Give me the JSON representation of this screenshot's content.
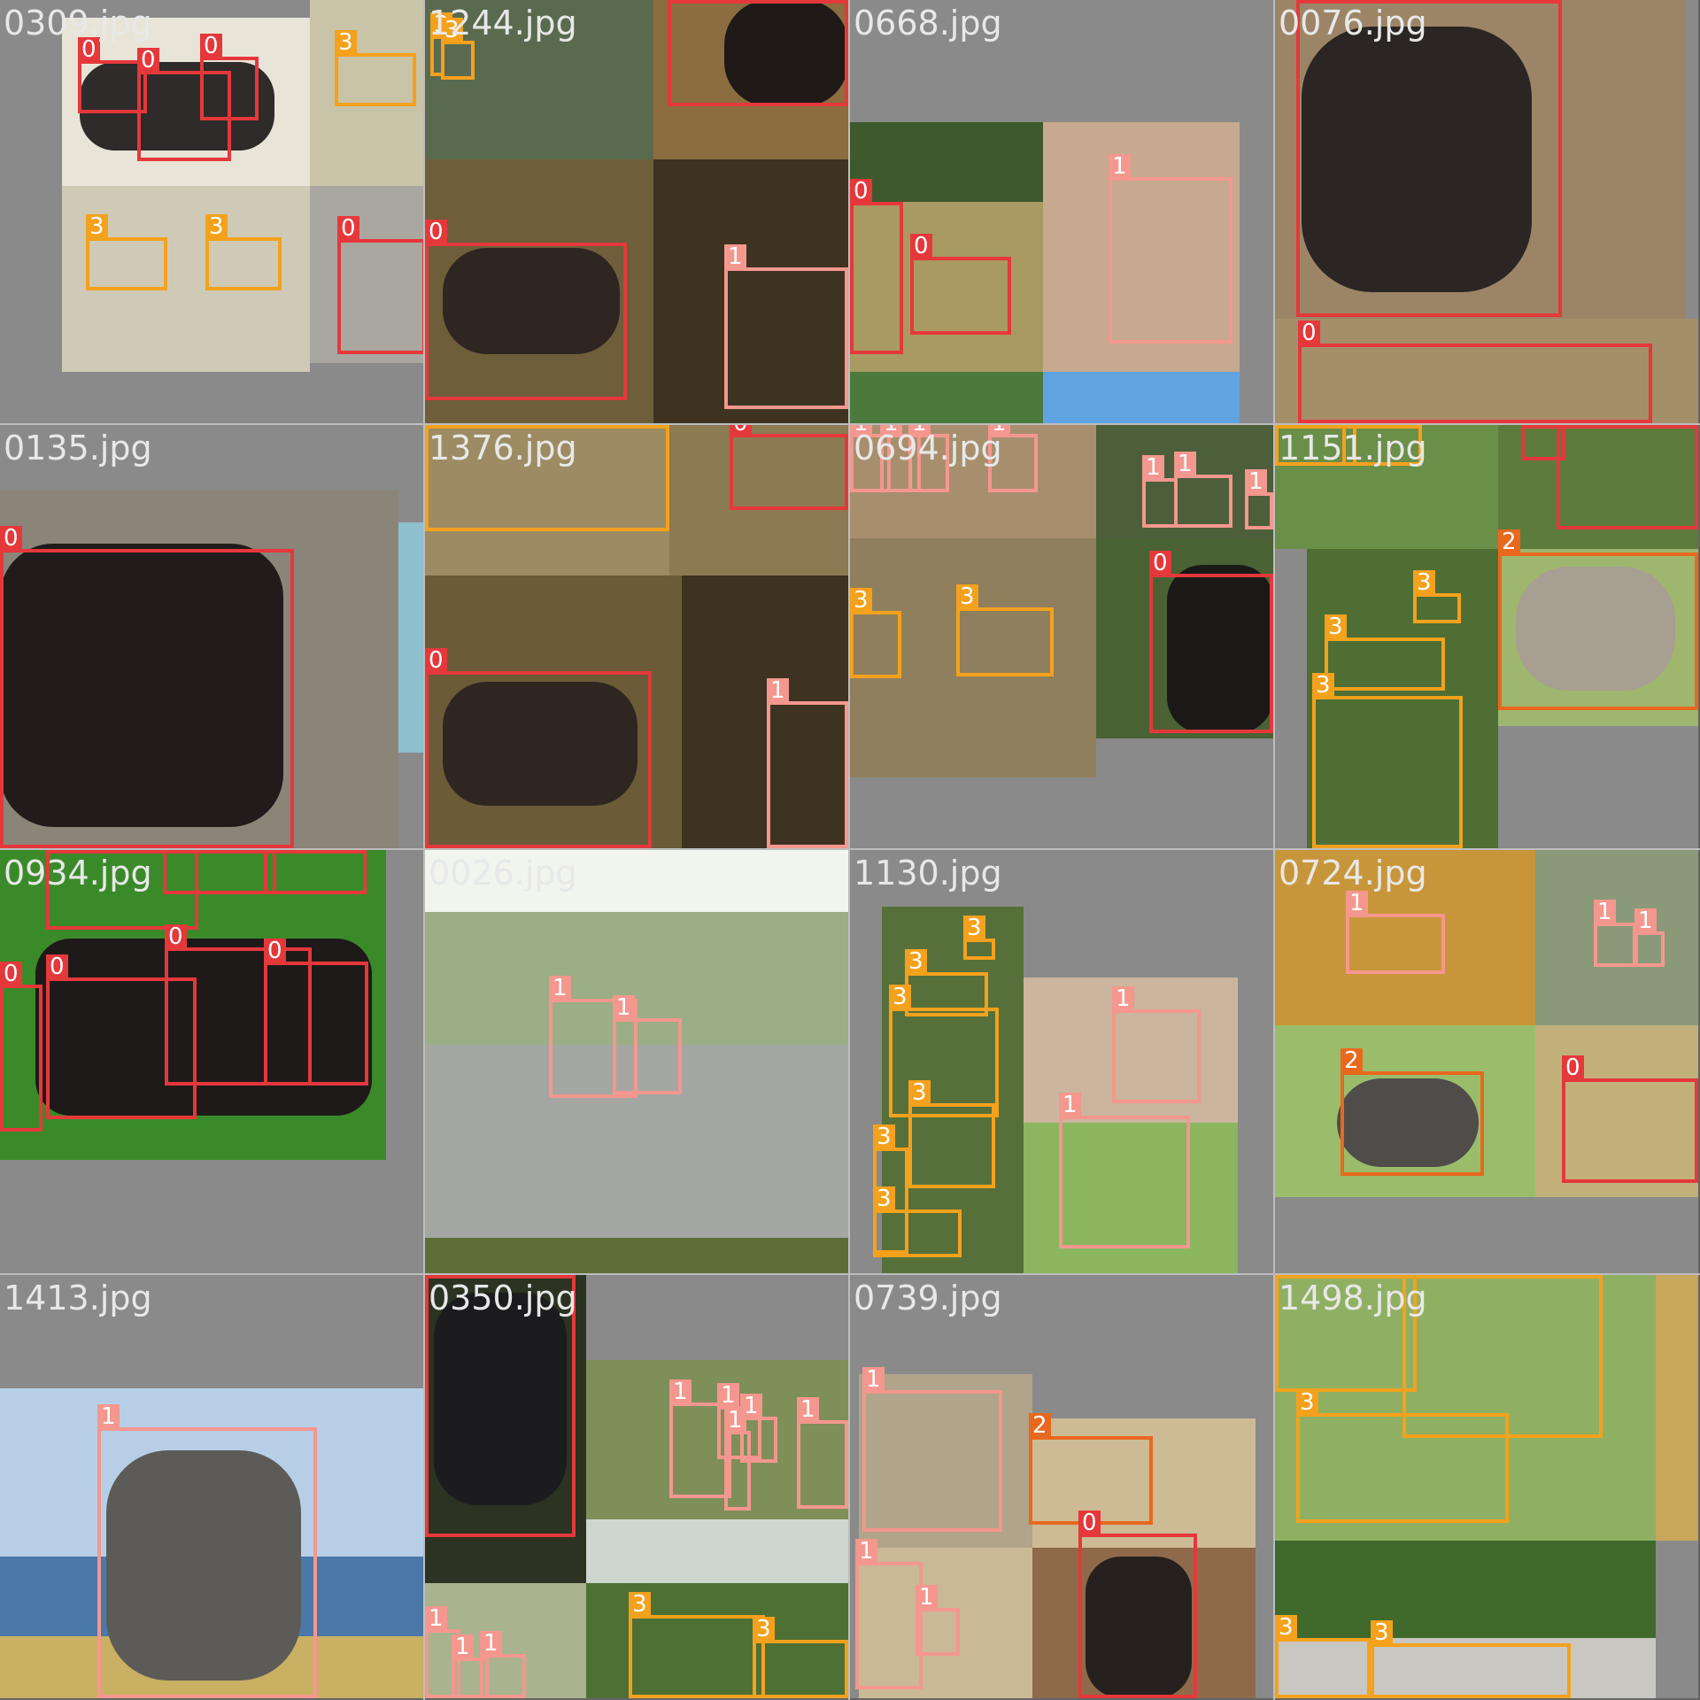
{
  "mosaic": {
    "image_size": "1920x1920",
    "class_colors": {
      "0": "#e5383b",
      "1": "#f4978e",
      "2": "#e8681e",
      "3": "#f4a11d"
    },
    "tiles": [
      {
        "filename": "0309.jpg"
      },
      {
        "filename": "1244.jpg"
      },
      {
        "filename": "0668.jpg"
      },
      {
        "filename": "0076.jpg"
      },
      {
        "filename": "0135.jpg"
      },
      {
        "filename": "1376.jpg"
      },
      {
        "filename": "0694.jpg"
      },
      {
        "filename": "1151.jpg"
      },
      {
        "filename": "0934.jpg"
      },
      {
        "filename": "0026.jpg"
      },
      {
        "filename": "1130.jpg"
      },
      {
        "filename": "0724.jpg"
      },
      {
        "filename": "1413.jpg"
      },
      {
        "filename": "0350.jpg"
      },
      {
        "filename": "0739.jpg"
      },
      {
        "filename": "1498.jpg"
      }
    ]
  }
}
